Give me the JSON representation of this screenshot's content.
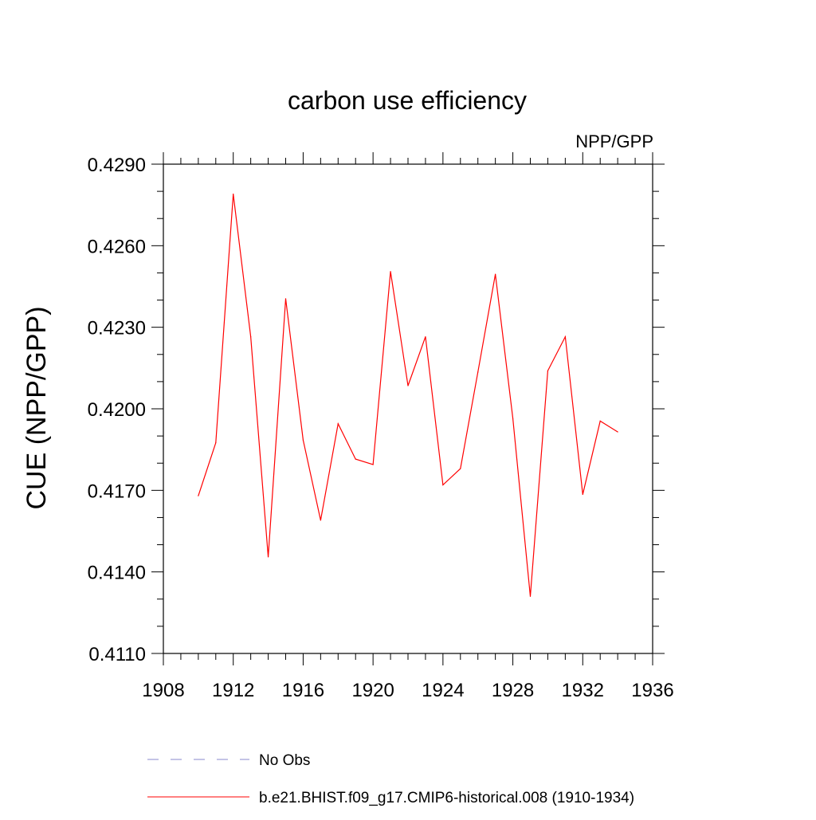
{
  "chart_data": {
    "type": "line",
    "title": "carbon use efficiency",
    "subtitle": "NPP/GPP",
    "ylabel": "CUE  (NPP/GPP)",
    "xlabel": "",
    "xlim": [
      1908,
      1936
    ],
    "ylim": [
      0.411,
      0.429
    ],
    "x_ticks": [
      1908,
      1912,
      1916,
      1920,
      1924,
      1928,
      1932,
      1936
    ],
    "x_tick_labels": [
      "1908",
      "1912",
      "1916",
      "1920",
      "1924",
      "1928",
      "1932",
      "1936"
    ],
    "y_ticks": [
      0.411,
      0.414,
      0.417,
      0.42,
      0.423,
      0.426,
      0.429
    ],
    "y_tick_labels": [
      "0.4110",
      "0.4140",
      "0.4170",
      "0.4200",
      "0.4230",
      "0.4260",
      "0.4290"
    ],
    "y_minor_step": 0.001,
    "x_minor_step": 1,
    "grid": false,
    "series": [
      {
        "name": "b.e21.BHIST.f09_g17.CMIP6-historical.008 (1910-1934)",
        "color": "#ff0000",
        "style": "solid",
        "x": [
          1910,
          1911,
          1912,
          1913,
          1914,
          1915,
          1916,
          1917,
          1918,
          1919,
          1920,
          1921,
          1922,
          1923,
          1924,
          1925,
          1926,
          1927,
          1928,
          1929,
          1930,
          1931,
          1932,
          1933,
          1934
        ],
        "values": [
          0.4168,
          0.41875,
          0.4279,
          0.42265,
          0.41455,
          0.42405,
          0.41885,
          0.4159,
          0.41945,
          0.41815,
          0.41795,
          0.42505,
          0.42085,
          0.42265,
          0.4172,
          0.4178,
          0.42135,
          0.42495,
          0.41965,
          0.4131,
          0.4214,
          0.42265,
          0.41685,
          0.41955,
          0.41915
        ]
      }
    ],
    "legend": [
      {
        "label": "No Obs",
        "color": "#8888cc",
        "style": "dashed"
      },
      {
        "label": "b.e21.BHIST.f09_g17.CMIP6-historical.008 (1910-1934)",
        "color": "#ff0000",
        "style": "solid"
      }
    ],
    "legend_position": "bottom"
  }
}
